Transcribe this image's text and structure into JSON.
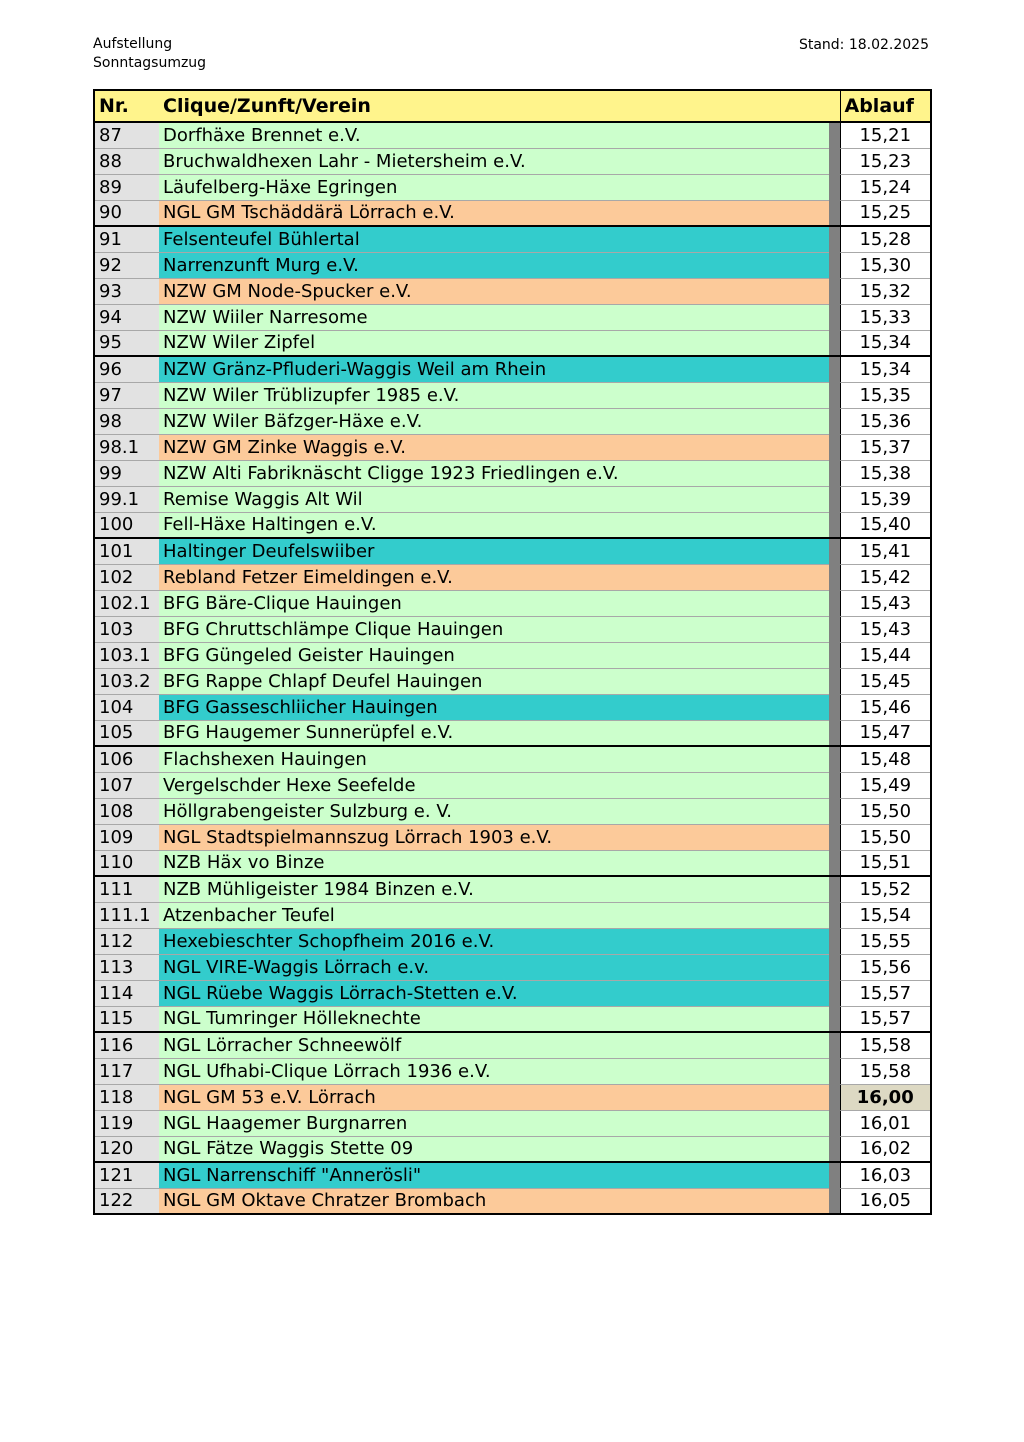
{
  "header": {
    "title_line1": "Aufstellung",
    "title_line2": "Sonntagsumzug",
    "stand": "Stand: 18.02.2025"
  },
  "table": {
    "columns": {
      "nr": "Nr.",
      "name": "Clique/Zunft/Verein",
      "time": "Ablauf"
    },
    "colors": {
      "green": "#ccffcc",
      "orange": "#fcca9a",
      "teal": "#33cccc",
      "yellow": "#fff48c"
    },
    "rows": [
      {
        "nr": "87",
        "name": "Dorfhäxe Brennet e.V.",
        "time": "15,21",
        "color": "green"
      },
      {
        "nr": "88",
        "name": "Bruchwaldhexen Lahr - Mietersheim e.V.",
        "time": "15,23",
        "color": "green"
      },
      {
        "nr": "89",
        "name": "Läufelberg-Häxe Egringen",
        "time": "15,24",
        "color": "green"
      },
      {
        "nr": "90",
        "name": "NGL GM Tschäddärä Lörrach e.V.",
        "time": "15,25",
        "color": "orange"
      },
      {
        "nr": "91",
        "name": "Felsenteufel Bühlertal",
        "time": "15,28",
        "color": "teal",
        "group_start": true
      },
      {
        "nr": "92",
        "name": "Narrenzunft Murg e.V.",
        "time": "15,30",
        "color": "teal"
      },
      {
        "nr": "93",
        "name": "NZW GM Node-Spucker e.V.",
        "time": "15,32",
        "color": "orange"
      },
      {
        "nr": "94",
        "name": "NZW Wiiler Narresome",
        "time": "15,33",
        "color": "green"
      },
      {
        "nr": "95",
        "name": "NZW Wiler Zipfel",
        "time": "15,34",
        "color": "green"
      },
      {
        "nr": "96",
        "name": "NZW Gränz-Pfluderi-Waggis Weil am Rhein",
        "time": "15,34",
        "color": "teal",
        "group_start": true
      },
      {
        "nr": "97",
        "name": "NZW Wiler Trüblizupfer 1985 e.V.",
        "time": "15,35",
        "color": "green"
      },
      {
        "nr": "98",
        "name": "NZW Wiler Bäfzger-Häxe e.V.",
        "time": "15,36",
        "color": "green"
      },
      {
        "nr": "98.1",
        "name": "NZW GM Zinke Waggis e.V.",
        "time": "15,37",
        "color": "orange"
      },
      {
        "nr": "99",
        "name": "NZW Alti Fabriknäscht Cligge 1923 Friedlingen e.V.",
        "time": "15,38",
        "color": "green"
      },
      {
        "nr": "99.1",
        "name": "Remise Waggis Alt Wil",
        "time": "15,39",
        "color": "green"
      },
      {
        "nr": "100",
        "name": "Fell-Häxe Haltingen e.V.",
        "time": "15,40",
        "color": "green"
      },
      {
        "nr": "101",
        "name": "Haltinger Deufelswiiber",
        "time": "15,41",
        "color": "teal",
        "group_start": true
      },
      {
        "nr": "102",
        "name": "Rebland Fetzer Eimeldingen e.V.",
        "time": "15,42",
        "color": "orange"
      },
      {
        "nr": "102.1",
        "name": "BFG Bäre-Clique Hauingen",
        "time": "15,43",
        "color": "green"
      },
      {
        "nr": "103",
        "name": "BFG Chruttschlämpe Clique Hauingen",
        "time": "15,43",
        "color": "green"
      },
      {
        "nr": "103.1",
        "name": "BFG Güngeled Geister Hauingen",
        "time": "15,44",
        "color": "green"
      },
      {
        "nr": "103.2",
        "name": "BFG Rappe Chlapf Deufel Hauingen",
        "time": "15,45",
        "color": "green"
      },
      {
        "nr": "104",
        "name": "BFG Gasseschliicher Hauingen",
        "time": "15,46",
        "color": "teal"
      },
      {
        "nr": "105",
        "name": "BFG Haugemer Sunnerüpfel e.V.",
        "time": "15,47",
        "color": "green"
      },
      {
        "nr": "106",
        "name": "Flachshexen Hauingen",
        "time": "15,48",
        "color": "green",
        "group_start": true
      },
      {
        "nr": "107",
        "name": "Vergelschder Hexe Seefelde",
        "time": "15,49",
        "color": "green"
      },
      {
        "nr": "108",
        "name": "Höllgrabengeister Sulzburg e. V.",
        "time": "15,50",
        "color": "green"
      },
      {
        "nr": "109",
        "name": "NGL Stadtspielmannszug Lörrach 1903 e.V.",
        "time": "15,50",
        "color": "orange"
      },
      {
        "nr": "110",
        "name": "NZB Häx vo Binze",
        "time": "15,51",
        "color": "green"
      },
      {
        "nr": "111",
        "name": "NZB Mühligeister 1984 Binzen e.V.",
        "time": "15,52",
        "color": "green",
        "group_start": true
      },
      {
        "nr": "111.1",
        "name": "Atzenbacher Teufel",
        "time": "15,54",
        "color": "green"
      },
      {
        "nr": "112",
        "name": "Hexebieschter Schopfheim 2016 e.V.",
        "time": "15,55",
        "color": "teal"
      },
      {
        "nr": "113",
        "name": "NGL VIRE-Waggis Lörrach e.v.",
        "time": "15,56",
        "color": "teal"
      },
      {
        "nr": "114",
        "name": "NGL Rüebe Waggis Lörrach-Stetten e.V.",
        "time": "15,57",
        "color": "teal"
      },
      {
        "nr": "115",
        "name": "NGL Tumringer Hölleknechte",
        "time": "15,57",
        "color": "green"
      },
      {
        "nr": "116",
        "name": "NGL Lörracher Schneewölf",
        "time": "15,58",
        "color": "green",
        "group_start": true
      },
      {
        "nr": "117",
        "name": "NGL Ufhabi-Clique Lörrach 1936 e.V.",
        "time": "15,58",
        "color": "green"
      },
      {
        "nr": "118",
        "name": "NGL GM 53 e.V. Lörrach",
        "time": "16,00",
        "color": "orange",
        "highlight": true
      },
      {
        "nr": "119",
        "name": "NGL Haagemer Burgnarren",
        "time": "16,01",
        "color": "green"
      },
      {
        "nr": "120",
        "name": "NGL Fätze Waggis Stette 09",
        "time": "16,02",
        "color": "green"
      },
      {
        "nr": "121",
        "name": "NGL Narrenschiff \"Annerösli\"",
        "time": "16,03",
        "color": "teal",
        "group_start": true
      },
      {
        "nr": "122",
        "name": "NGL GM Oktave Chratzer Brombach",
        "time": "16,05",
        "color": "orange"
      }
    ]
  }
}
